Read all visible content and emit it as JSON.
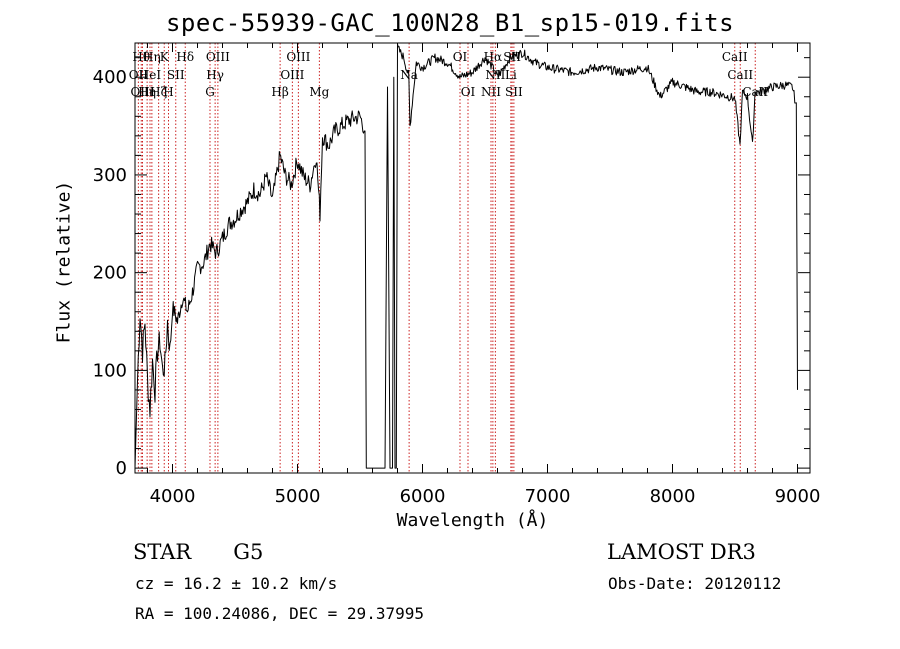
{
  "title": "spec-55939-GAC_100N28_B1_sp15-019.fits",
  "chart_data": {
    "type": "line",
    "title": "spec-55939-GAC_100N28_B1_sp15-019.fits",
    "xlabel": "Wavelength (Å)",
    "ylabel": "Flux (relative)",
    "xlim": [
      3700,
      9100
    ],
    "ylim": [
      -5,
      435
    ],
    "xticks": [
      4000,
      5000,
      6000,
      7000,
      8000,
      9000
    ],
    "yticks": [
      0,
      100,
      200,
      300,
      400
    ],
    "grid": false,
    "series": [
      {
        "name": "flux",
        "x": [
          3700,
          3720,
          3740,
          3760,
          3780,
          3800,
          3820,
          3840,
          3860,
          3880,
          3900,
          3920,
          3940,
          3960,
          3980,
          4000,
          4040,
          4080,
          4120,
          4160,
          4200,
          4250,
          4300,
          4350,
          4400,
          4450,
          4500,
          4550,
          4600,
          4650,
          4700,
          4750,
          4800,
          4860,
          4900,
          4950,
          5000,
          5050,
          5100,
          5150,
          5180,
          5200,
          5250,
          5300,
          5350,
          5400,
          5450,
          5500,
          5540,
          5550,
          5560,
          5600,
          5650,
          5700,
          5720,
          5740,
          5750,
          5760,
          5770,
          5780,
          5790,
          5800,
          5850,
          5890,
          5900,
          5950,
          6000,
          6100,
          6200,
          6300,
          6400,
          6500,
          6560,
          6600,
          6700,
          6800,
          6900,
          7000,
          7200,
          7400,
          7600,
          7800,
          7850,
          7900,
          8000,
          8100,
          8200,
          8300,
          8400,
          8500,
          8540,
          8560,
          8600,
          8640,
          8660,
          8700,
          8800,
          8900,
          8960,
          8990,
          9000
        ],
        "values": [
          0,
          90,
          160,
          120,
          150,
          90,
          60,
          110,
          80,
          120,
          130,
          100,
          105,
          150,
          120,
          165,
          150,
          175,
          160,
          180,
          205,
          210,
          230,
          220,
          235,
          250,
          255,
          265,
          272,
          285,
          280,
          298,
          275,
          320,
          300,
          290,
          315,
          298,
          290,
          320,
          260,
          340,
          330,
          345,
          350,
          355,
          358,
          360,
          345,
          0,
          0,
          0,
          0,
          0,
          390,
          0,
          0,
          0,
          400,
          0,
          0,
          430,
          420,
          400,
          350,
          415,
          410,
          420,
          415,
          400,
          405,
          420,
          410,
          400,
          420,
          425,
          415,
          410,
          405,
          410,
          405,
          410,
          395,
          380,
          395,
          390,
          385,
          385,
          382,
          378,
          330,
          385,
          380,
          330,
          385,
          385,
          390,
          392,
          390,
          370,
          80
        ]
      }
    ],
    "lines": [
      {
        "wl": 3727,
        "label": "OII",
        "row": 1
      },
      {
        "wl": 3750,
        "label": "Hθ",
        "row": 0
      },
      {
        "wl": 3760,
        "label": "OIII",
        "row": 2
      },
      {
        "wl": 3797,
        "label": "Hη",
        "row": 2
      },
      {
        "wl": 3820,
        "label": "HeI",
        "row": 1
      },
      {
        "wl": 3835,
        "label": "Hη",
        "row": 0
      },
      {
        "wl": 3889,
        "label": "Hζ",
        "row": 2
      },
      {
        "wl": 3934,
        "label": "K",
        "row": 0
      },
      {
        "wl": 3968,
        "label": "H",
        "row": 2
      },
      {
        "wl": 4026,
        "label": "SII",
        "row": 1
      },
      {
        "wl": 4102,
        "label": "Hδ",
        "row": 0
      },
      {
        "wl": 4300,
        "label": "G",
        "row": 2
      },
      {
        "wl": 4341,
        "label": "Hγ",
        "row": 1
      },
      {
        "wl": 4363,
        "label": "OIII",
        "row": 0
      },
      {
        "wl": 4861,
        "label": "Hβ",
        "row": 2
      },
      {
        "wl": 4959,
        "label": "OIII",
        "row": 1
      },
      {
        "wl": 5007,
        "label": "OIII",
        "row": 0
      },
      {
        "wl": 5175,
        "label": "Mg",
        "row": 2
      },
      {
        "wl": 5893,
        "label": "Na",
        "row": 1
      },
      {
        "wl": 6300,
        "label": "OI",
        "row": 0
      },
      {
        "wl": 6364,
        "label": "OI",
        "row": 2
      },
      {
        "wl": 6548,
        "label": "NII",
        "row": 2
      },
      {
        "wl": 6563,
        "label": "Hα",
        "row": 0
      },
      {
        "wl": 6583,
        "label": "NII",
        "row": 1
      },
      {
        "wl": 6707,
        "label": "Li",
        "row": 1
      },
      {
        "wl": 6717,
        "label": "SII",
        "row": 0
      },
      {
        "wl": 6731,
        "label": "SII",
        "row": 2
      },
      {
        "wl": 8498,
        "label": "CaII",
        "row": 0
      },
      {
        "wl": 8542,
        "label": "CaII",
        "row": 1
      },
      {
        "wl": 8662,
        "label": "CaII",
        "row": 2
      }
    ]
  },
  "info": {
    "object_class": "STAR",
    "subclass": "G5",
    "survey": "LAMOST DR3",
    "cz": "cz = 16.2 ± 10.2 km/s",
    "obs_date": "Obs-Date: 20120112",
    "radec": "RA = 100.24086, DEC =  29.37995"
  }
}
